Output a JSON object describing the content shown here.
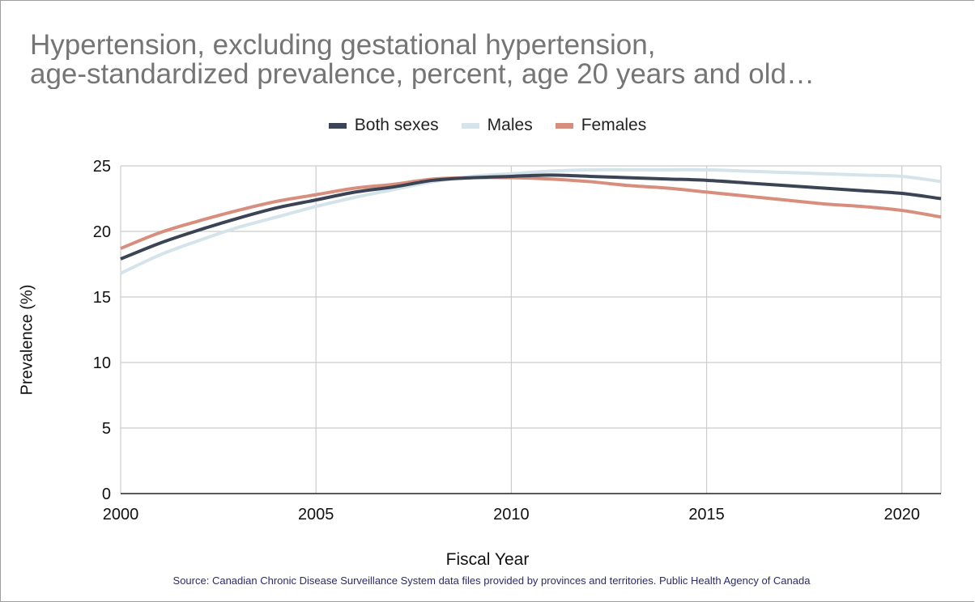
{
  "chart_data": {
    "type": "line",
    "title_lines": [
      "Hypertension, excluding gestational hypertension,",
      "age-standardized prevalence, percent, age 20 years and old…"
    ],
    "xlabel": "Fiscal Year",
    "ylabel": "Prevalence (%)",
    "source": "Source: Canadian Chronic Disease Surveillance System data files provided by provinces and territories. Public Health Agency of Canada",
    "xlim": [
      2000,
      2021
    ],
    "ylim": [
      0,
      25
    ],
    "x_ticks": [
      "2000",
      "2005",
      "2010",
      "2015",
      "2020"
    ],
    "y_ticks": [
      "0",
      "5",
      "10",
      "15",
      "20",
      "25"
    ],
    "grid": true,
    "legend_position": "top",
    "x": [
      2000,
      2001,
      2002,
      2003,
      2004,
      2005,
      2006,
      2007,
      2008,
      2009,
      2010,
      2011,
      2012,
      2013,
      2014,
      2015,
      2016,
      2017,
      2018,
      2019,
      2020,
      2021
    ],
    "series": [
      {
        "name": "Both sexes",
        "color": "#3b4455",
        "values": [
          17.9,
          19.1,
          20.1,
          21.0,
          21.8,
          22.4,
          23.0,
          23.4,
          23.9,
          24.1,
          24.2,
          24.3,
          24.2,
          24.1,
          24.0,
          23.9,
          23.7,
          23.5,
          23.3,
          23.1,
          22.9,
          22.5
        ]
      },
      {
        "name": "Males",
        "color": "#d5e3ea",
        "values": [
          16.8,
          18.2,
          19.3,
          20.3,
          21.1,
          21.9,
          22.6,
          23.2,
          23.8,
          24.2,
          24.4,
          24.6,
          24.7,
          24.7,
          24.7,
          24.7,
          24.6,
          24.5,
          24.4,
          24.3,
          24.2,
          23.8
        ]
      },
      {
        "name": "Females",
        "color": "#d88e7c",
        "values": [
          18.7,
          19.9,
          20.8,
          21.6,
          22.3,
          22.8,
          23.3,
          23.6,
          24.0,
          24.1,
          24.1,
          24.0,
          23.8,
          23.5,
          23.3,
          23.0,
          22.7,
          22.4,
          22.1,
          21.9,
          21.6,
          21.1
        ]
      }
    ]
  }
}
